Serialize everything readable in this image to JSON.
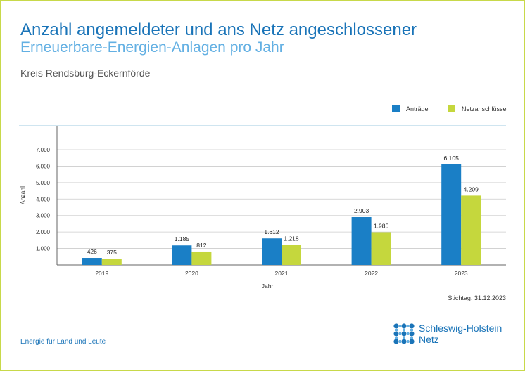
{
  "header": {
    "title_line1": "Anzahl angemeldeter und ans Netz angeschlossener",
    "title_line2": "Erneuerbare-Energien-Anlagen pro Jahr",
    "subtitle": "Kreis Rendsburg-Eckernförde"
  },
  "colors": {
    "antraege": "#1a7fc6",
    "netzanschluesse": "#c5d73d",
    "frame": "#c8d94a",
    "title": "#1a74b8",
    "title_light": "#63b0e3"
  },
  "chart_data": {
    "type": "bar",
    "categories": [
      "2019",
      "2020",
      "2021",
      "2022",
      "2023"
    ],
    "series": [
      {
        "name": "Anträge",
        "values": [
          426,
          1185,
          1612,
          2903,
          6105
        ],
        "labels": [
          "426",
          "1.185",
          "1.612",
          "2.903",
          "6.105"
        ]
      },
      {
        "name": "Netzanschlüsse",
        "values": [
          375,
          812,
          1218,
          1985,
          4209
        ],
        "labels": [
          "375",
          "812",
          "1.218",
          "1.985",
          "4.209"
        ]
      }
    ],
    "xlabel": "Jahr",
    "ylabel": "Anzahl",
    "ylim": [
      0,
      7000
    ],
    "yticks": [
      1000,
      2000,
      3000,
      4000,
      5000,
      6000,
      7000
    ],
    "ytick_labels": [
      "1.000",
      "2.000",
      "3.000",
      "4.000",
      "5.000",
      "6.000",
      "7.000"
    ],
    "grid": true,
    "legend_position": "top-right"
  },
  "footer": {
    "stichtag": "Stichtag: 31.12.2023",
    "tagline": "Energie für Land und Leute",
    "logo_line1": "Schleswig-Holstein",
    "logo_line2": "Netz"
  }
}
